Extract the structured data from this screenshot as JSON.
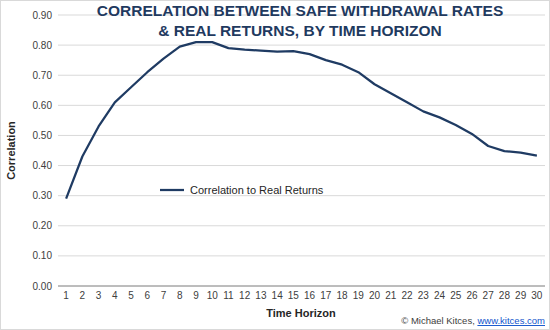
{
  "chart_data": {
    "type": "line",
    "title": [
      "CORRELATION BETWEEN SAFE WITHDRAWAL RATES",
      "& REAL RETURNS, BY TIME HORIZON"
    ],
    "x_label": "Time Horizon",
    "y_label": "Correlation",
    "categories": [
      "1",
      "2",
      "3",
      "4",
      "5",
      "6",
      "7",
      "8",
      "9",
      "10",
      "11",
      "12",
      "13",
      "14",
      "15",
      "16",
      "17",
      "18",
      "19",
      "20",
      "21",
      "22",
      "23",
      "24",
      "25",
      "26",
      "27",
      "28",
      "29",
      "30"
    ],
    "series": [
      {
        "name": "Correlation to Real Returns",
        "color": "#1f3b63",
        "values": [
          0.29,
          0.43,
          0.53,
          0.61,
          0.66,
          0.71,
          0.755,
          0.795,
          0.81,
          0.81,
          0.79,
          0.785,
          0.782,
          0.778,
          0.78,
          0.77,
          0.75,
          0.735,
          0.71,
          0.67,
          0.64,
          0.61,
          0.58,
          0.56,
          0.535,
          0.505,
          0.465,
          0.448,
          0.443,
          0.433
        ]
      }
    ],
    "ylim": [
      0,
      0.9
    ],
    "yticks": [
      {
        "value": 0,
        "label": "0.00"
      },
      {
        "value": 0.1,
        "label": "0.10"
      },
      {
        "value": 0.2,
        "label": "0.20"
      },
      {
        "value": 0.3,
        "label": "0.30"
      },
      {
        "value": 0.4,
        "label": "0.40"
      },
      {
        "value": 0.5,
        "label": "0.50"
      },
      {
        "value": 0.6,
        "label": "0.60"
      },
      {
        "value": 0.7,
        "label": "0.70"
      },
      {
        "value": 0.8,
        "label": "0.80"
      },
      {
        "value": 0.9,
        "label": "0.90"
      }
    ],
    "grid": true,
    "legend": "left",
    "credit": {
      "text": "© Michael Kitces,",
      "link": "www.kitces.com"
    }
  }
}
